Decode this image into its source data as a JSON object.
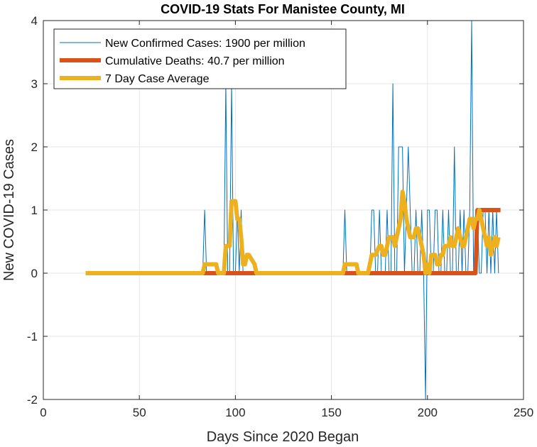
{
  "chart_data": {
    "type": "line",
    "title": "COVID-19 Stats For Manistee County, MI",
    "xlabel": "Days Since 2020 Began",
    "ylabel": "New COVID-19 Cases",
    "xlim": [
      0,
      250
    ],
    "ylim": [
      -2,
      4
    ],
    "xticks": [
      0,
      50,
      100,
      150,
      200,
      250
    ],
    "yticks": [
      -2,
      -1,
      0,
      1,
      2,
      3,
      4
    ],
    "grid": true,
    "legend_position": "top-left",
    "series": [
      {
        "name": "New Confirmed Cases: 1900 per million",
        "color": "#0072BD",
        "width": 1,
        "x": [
          22,
          83,
          84,
          85,
          94,
          95,
          96,
          97,
          98,
          99,
          100,
          101,
          102,
          103,
          104,
          105,
          106,
          156,
          157,
          158,
          170,
          171,
          172,
          173,
          174,
          175,
          176,
          177,
          178,
          179,
          180,
          181,
          182,
          183,
          184,
          185,
          186,
          187,
          188,
          189,
          190,
          191,
          192,
          193,
          194,
          195,
          196,
          197,
          198,
          199,
          200,
          201,
          202,
          203,
          204,
          205,
          206,
          207,
          208,
          209,
          210,
          211,
          212,
          213,
          214,
          215,
          216,
          217,
          218,
          219,
          220,
          221,
          222,
          223,
          224,
          225,
          226,
          227,
          228,
          229,
          230,
          231,
          232,
          233,
          234,
          235,
          236,
          237
        ],
        "y": [
          0,
          0,
          1,
          0,
          0,
          3,
          0,
          0,
          3,
          0,
          0,
          1,
          0,
          1,
          0,
          0,
          0,
          0,
          1,
          0,
          0,
          1,
          1,
          0,
          0,
          1,
          0,
          0,
          0,
          1,
          0,
          0,
          3,
          0,
          0,
          2,
          2,
          2,
          0,
          1,
          2,
          1,
          0,
          0,
          1,
          0,
          0,
          1,
          0,
          -2,
          1,
          1,
          0,
          0,
          1,
          1,
          0,
          0,
          1,
          0,
          0,
          1,
          0,
          0,
          2,
          0,
          0,
          1,
          0,
          1,
          0,
          0,
          1,
          4,
          0,
          0,
          1,
          0,
          0,
          1,
          1,
          0,
          1,
          0,
          1,
          0,
          1,
          0
        ]
      },
      {
        "name": "Cumulative Deaths: 40.7 per million",
        "color": "#D95319",
        "width": 6,
        "x": [
          22,
          225,
          226,
          238
        ],
        "y": [
          0,
          0,
          1,
          1
        ]
      },
      {
        "name": "7 Day Case Average",
        "color": "#EDB120",
        "width": 6,
        "x": [
          22,
          83,
          84,
          90,
          91,
          94,
          95,
          97,
          98,
          100,
          101,
          102,
          103,
          104,
          105,
          106,
          107,
          110,
          111,
          113,
          114,
          156,
          157,
          163,
          164,
          169,
          170,
          171,
          173,
          175,
          176,
          177,
          178,
          180,
          181,
          182,
          183,
          185,
          186,
          187,
          188,
          189,
          190,
          191,
          192,
          193,
          194,
          195,
          196,
          197,
          198,
          199,
          200,
          201,
          202,
          203,
          204,
          205,
          206,
          207,
          208,
          209,
          210,
          211,
          212,
          213,
          214,
          215,
          216,
          217,
          218,
          219,
          220,
          221,
          222,
          223,
          224,
          225,
          226,
          227,
          228,
          229,
          230,
          231,
          232,
          233,
          234,
          235,
          236,
          237
        ],
        "y": [
          0,
          0,
          0.14,
          0.14,
          0,
          0,
          0.43,
          0.43,
          1.14,
          1.14,
          0.86,
          0.86,
          0.57,
          0.14,
          0.14,
          0.29,
          0.29,
          0.14,
          0,
          0,
          0,
          0,
          0.14,
          0.14,
          0,
          0,
          0.14,
          0.29,
          0.29,
          0.43,
          0.43,
          0.29,
          0.29,
          0.57,
          0.57,
          0.57,
          0.43,
          0.71,
          0.86,
          1.29,
          1.14,
          0.86,
          0.71,
          0.57,
          0.57,
          0.57,
          0.71,
          0.71,
          0.57,
          0.43,
          0.29,
          0,
          0.14,
          0,
          0.29,
          0.29,
          0.29,
          0.14,
          0.14,
          0.29,
          0.29,
          0.43,
          0.43,
          0.43,
          0.57,
          0.43,
          0.43,
          0.57,
          0.71,
          0.57,
          0.43,
          0.43,
          0.57,
          0.71,
          0.86,
          0.86,
          0.71,
          0.86,
          0.86,
          1.0,
          0.86,
          0.71,
          0.57,
          0.43,
          0.57,
          0.29,
          0.43,
          0.57,
          0.43,
          0.57
        ]
      }
    ]
  }
}
